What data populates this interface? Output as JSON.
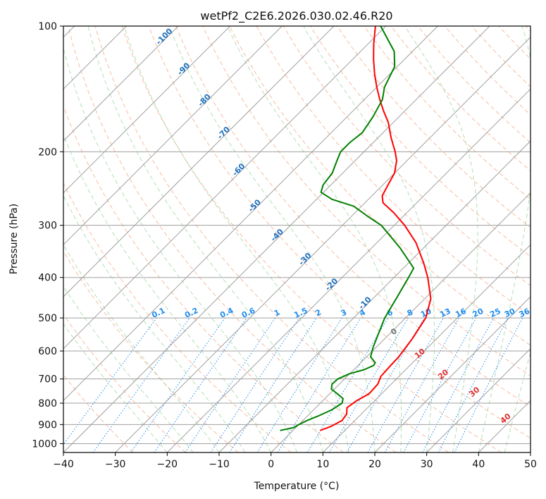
{
  "chart_data": {
    "type": "line",
    "title": "wetPf2_C2E6.2026.030.02.46.R20",
    "xlabel": "Temperature (°C)",
    "ylabel": "Pressure (hPa)",
    "xlim": [
      -40,
      50
    ],
    "ylim": [
      1050,
      100
    ],
    "y_scale": "log",
    "x_ticks": [
      -40,
      -30,
      -20,
      -10,
      0,
      10,
      20,
      30,
      40,
      50
    ],
    "x_tick_labels": [
      "−40",
      "−30",
      "−20",
      "−10",
      "0",
      "10",
      "20",
      "30",
      "40",
      "50"
    ],
    "y_ticks": [
      100,
      200,
      300,
      400,
      500,
      600,
      700,
      800,
      900,
      1000
    ],
    "y_tick_labels": [
      "100",
      "200",
      "300",
      "400",
      "500",
      "600",
      "700",
      "800",
      "900",
      "1000"
    ],
    "grid": true,
    "skew_deg": 45,
    "colors": {
      "temperature": "#ff0000",
      "dewpoint": "#008000",
      "isotherm": "#a0a0a0",
      "dry_adiabat": "#f4a582",
      "moist_adiabat": "#a6d9a6",
      "mixing_ratio": "#1f8ef0",
      "isotherm_label": "#1f6fbf",
      "mixing_label": "#1f8ef0",
      "red_label": "#e03030",
      "gray_label": "#777777"
    },
    "series": [
      {
        "points": [
          [
            930,
            5.2
          ],
          [
            910,
            6.5
          ],
          [
            880,
            7.5
          ],
          [
            850,
            7.2
          ],
          [
            820,
            6.0
          ],
          [
            790,
            6.5
          ],
          [
            760,
            7.6
          ],
          [
            720,
            7.4
          ],
          [
            690,
            6.5
          ],
          [
            650,
            6.3
          ],
          [
            620,
            6.2
          ],
          [
            560,
            5.3
          ],
          [
            500,
            3.9
          ],
          [
            450,
            1.2
          ],
          [
            400,
            -3.5
          ],
          [
            370,
            -7
          ],
          [
            330,
            -12.5
          ],
          [
            300,
            -18
          ],
          [
            280,
            -22.5
          ],
          [
            265,
            -26.5
          ],
          [
            255,
            -28
          ],
          [
            240,
            -29
          ],
          [
            225,
            -30
          ],
          [
            210,
            -32
          ],
          [
            200,
            -34
          ],
          [
            185,
            -37.5
          ],
          [
            170,
            -41
          ],
          [
            160,
            -44
          ],
          [
            150,
            -47
          ],
          [
            140,
            -50
          ],
          [
            130,
            -53
          ],
          [
            120,
            -56
          ],
          [
            110,
            -59
          ],
          [
            100,
            -62
          ]
        ]
      },
      {
        "points": [
          [
            930,
            -2.5
          ],
          [
            915,
            -0.4
          ],
          [
            900,
            0.0
          ],
          [
            880,
            0.8
          ],
          [
            860,
            2.0
          ],
          [
            830,
            3.5
          ],
          [
            800,
            4.2
          ],
          [
            780,
            3.5
          ],
          [
            760,
            1.5
          ],
          [
            740,
            -0.6
          ],
          [
            720,
            -1.4
          ],
          [
            700,
            -1.3
          ],
          [
            680,
            0.0
          ],
          [
            665,
            2.0
          ],
          [
            650,
            3.0
          ],
          [
            640,
            2.8
          ],
          [
            620,
            0.8
          ],
          [
            590,
            -0.5
          ],
          [
            550,
            -2.0
          ],
          [
            500,
            -4.0
          ],
          [
            450,
            -5.5
          ],
          [
            400,
            -7.2
          ],
          [
            380,
            -8.0
          ],
          [
            340,
            -14.5
          ],
          [
            300,
            -22.5
          ],
          [
            285,
            -27
          ],
          [
            270,
            -31.5
          ],
          [
            260,
            -37
          ],
          [
            250,
            -40.5
          ],
          [
            240,
            -41.5
          ],
          [
            225,
            -42
          ],
          [
            210,
            -43.5
          ],
          [
            200,
            -44.5
          ],
          [
            190,
            -44.5
          ],
          [
            180,
            -44
          ],
          [
            165,
            -45
          ],
          [
            150,
            -46.5
          ],
          [
            140,
            -48.5
          ],
          [
            125,
            -50.5
          ],
          [
            115,
            -53.5
          ],
          [
            100,
            -61
          ]
        ]
      }
    ],
    "isotherm_labels": [
      "-100",
      "-90",
      "-80",
      "-70",
      "-60",
      "-50",
      "-40",
      "-30",
      "-20",
      "-10"
    ],
    "mixing_ratio_labels": [
      "0.1",
      "0.2",
      "0.4",
      "0.6",
      "1",
      "1.5",
      "2",
      "3",
      "4",
      "6",
      "8",
      "10",
      "13",
      "16",
      "20",
      "25",
      "30",
      "36"
    ],
    "adiabat_labels": [
      "0",
      "10",
      "20",
      "30",
      "40"
    ]
  }
}
